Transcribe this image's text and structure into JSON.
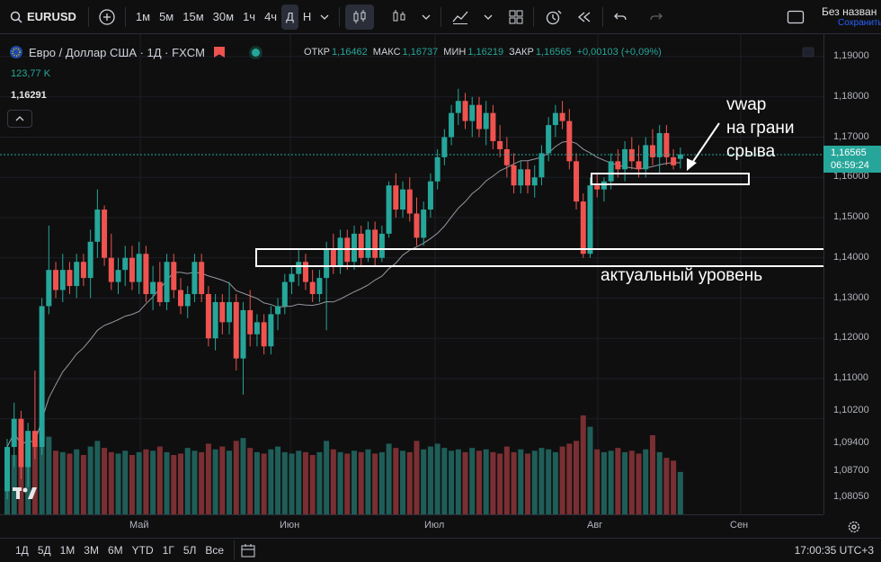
{
  "toolbar": {
    "symbol": "EURUSD",
    "intervals": [
      "1м",
      "5м",
      "15м",
      "30м",
      "1ч",
      "4ч",
      "Д",
      "Н"
    ],
    "active_interval": "Д",
    "save_title": "Без назван",
    "save_sub": "Сохранить"
  },
  "legend": {
    "title": "Евро / Доллар США · 1Д · FXCM",
    "open_label": "ОТКР",
    "open": "1,16462",
    "high_label": "МАКС",
    "high": "1,16737",
    "low_label": "МИН",
    "low": "1,16219",
    "close_label": "ЗАКР",
    "close": "1,16565",
    "change": "+0,00103 (+0,09%)",
    "volume": "123,77 K",
    "last": "1,16291"
  },
  "price_axis": {
    "ticks": [
      "1,19000",
      "1,18000",
      "1,17000",
      "1,16000",
      "1,15000",
      "1,14000",
      "1,13000",
      "1,12000",
      "1,11000",
      "1,10200",
      "1,09400",
      "1,08700",
      "1,08050"
    ],
    "current_price": "1,16565",
    "countdown": "06:59:24"
  },
  "time_axis": {
    "ticks": [
      "Май",
      "Июн",
      "Июл",
      "Авг",
      "Сен"
    ]
  },
  "bottom": {
    "ranges": [
      "1Д",
      "5Д",
      "1М",
      "3М",
      "6М",
      "YTD",
      "1Г",
      "5Л",
      "Все"
    ],
    "clock": "17:00:35 UTC+3"
  },
  "annotations": {
    "vwap_line1": "vwap",
    "vwap_line2": "на грани",
    "vwap_line3": "срыва",
    "level": "актуальный уровень"
  },
  "colors": {
    "up": "#26a69a",
    "down": "#ef5350",
    "background": "#0f0f0f"
  },
  "chart_data": {
    "type": "candlestick",
    "title": "Евро / Доллар США · 1Д · FXCM",
    "ylim": [
      1.0785,
      1.192
    ],
    "x_ticks": [
      "Май",
      "Июн",
      "Июл",
      "Авг",
      "Сен"
    ],
    "candles": [
      [
        1.082,
        1.095,
        1.08,
        1.093
      ],
      [
        1.093,
        1.104,
        1.088,
        1.1
      ],
      [
        1.1,
        1.102,
        1.085,
        1.088
      ],
      [
        1.088,
        1.099,
        1.083,
        1.097
      ],
      [
        1.097,
        1.112,
        1.09,
        1.093
      ],
      [
        1.093,
        1.13,
        1.091,
        1.128
      ],
      [
        1.128,
        1.148,
        1.126,
        1.137
      ],
      [
        1.137,
        1.139,
        1.13,
        1.132
      ],
      [
        1.132,
        1.141,
        1.129,
        1.137
      ],
      [
        1.137,
        1.139,
        1.131,
        1.133
      ],
      [
        1.133,
        1.141,
        1.13,
        1.139
      ],
      [
        1.139,
        1.141,
        1.133,
        1.135
      ],
      [
        1.135,
        1.147,
        1.13,
        1.144
      ],
      [
        1.144,
        1.157,
        1.14,
        1.152
      ],
      [
        1.152,
        1.153,
        1.138,
        1.14
      ],
      [
        1.14,
        1.146,
        1.132,
        1.134
      ],
      [
        1.134,
        1.14,
        1.131,
        1.137
      ],
      [
        1.137,
        1.143,
        1.133,
        1.14
      ],
      [
        1.14,
        1.143,
        1.132,
        1.134
      ],
      [
        1.134,
        1.144,
        1.131,
        1.141
      ],
      [
        1.141,
        1.143,
        1.129,
        1.131
      ],
      [
        1.131,
        1.138,
        1.127,
        1.134
      ],
      [
        1.134,
        1.139,
        1.128,
        1.129
      ],
      [
        1.129,
        1.141,
        1.127,
        1.139
      ],
      [
        1.139,
        1.141,
        1.13,
        1.132
      ],
      [
        1.132,
        1.135,
        1.126,
        1.128
      ],
      [
        1.128,
        1.133,
        1.125,
        1.131
      ],
      [
        1.131,
        1.141,
        1.129,
        1.139
      ],
      [
        1.139,
        1.141,
        1.129,
        1.131
      ],
      [
        1.131,
        1.133,
        1.118,
        1.12
      ],
      [
        1.12,
        1.131,
        1.117,
        1.129
      ],
      [
        1.129,
        1.131,
        1.121,
        1.124
      ],
      [
        1.124,
        1.134,
        1.121,
        1.129
      ],
      [
        1.129,
        1.131,
        1.112,
        1.115
      ],
      [
        1.115,
        1.129,
        1.106,
        1.127
      ],
      [
        1.127,
        1.132,
        1.118,
        1.121
      ],
      [
        1.121,
        1.126,
        1.118,
        1.124
      ],
      [
        1.124,
        1.126,
        1.116,
        1.118
      ],
      [
        1.118,
        1.128,
        1.116,
        1.126
      ],
      [
        1.126,
        1.13,
        1.122,
        1.128
      ],
      [
        1.128,
        1.136,
        1.126,
        1.134
      ],
      [
        1.134,
        1.138,
        1.131,
        1.136
      ],
      [
        1.136,
        1.142,
        1.133,
        1.139
      ],
      [
        1.139,
        1.141,
        1.132,
        1.134
      ],
      [
        1.134,
        1.137,
        1.129,
        1.131
      ],
      [
        1.131,
        1.137,
        1.129,
        1.135
      ],
      [
        1.135,
        1.144,
        1.122,
        1.142
      ],
      [
        1.142,
        1.146,
        1.136,
        1.138
      ],
      [
        1.138,
        1.147,
        1.136,
        1.145
      ],
      [
        1.145,
        1.147,
        1.137,
        1.139
      ],
      [
        1.139,
        1.148,
        1.137,
        1.146
      ],
      [
        1.146,
        1.148,
        1.138,
        1.14
      ],
      [
        1.14,
        1.149,
        1.139,
        1.147
      ],
      [
        1.147,
        1.149,
        1.138,
        1.14
      ],
      [
        1.14,
        1.148,
        1.139,
        1.146
      ],
      [
        1.146,
        1.159,
        1.145,
        1.158
      ],
      [
        1.158,
        1.161,
        1.15,
        1.152
      ],
      [
        1.152,
        1.159,
        1.15,
        1.157
      ],
      [
        1.157,
        1.16,
        1.149,
        1.151
      ],
      [
        1.151,
        1.155,
        1.143,
        1.145
      ],
      [
        1.145,
        1.154,
        1.143,
        1.152
      ],
      [
        1.152,
        1.161,
        1.15,
        1.159
      ],
      [
        1.159,
        1.167,
        1.157,
        1.165
      ],
      [
        1.165,
        1.172,
        1.163,
        1.17
      ],
      [
        1.17,
        1.178,
        1.168,
        1.176
      ],
      [
        1.176,
        1.182,
        1.173,
        1.179
      ],
      [
        1.179,
        1.181,
        1.172,
        1.174
      ],
      [
        1.174,
        1.18,
        1.17,
        1.178
      ],
      [
        1.178,
        1.18,
        1.17,
        1.172
      ],
      [
        1.172,
        1.179,
        1.168,
        1.176
      ],
      [
        1.176,
        1.178,
        1.167,
        1.169
      ],
      [
        1.169,
        1.173,
        1.165,
        1.167
      ],
      [
        1.167,
        1.17,
        1.16,
        1.163
      ],
      [
        1.163,
        1.166,
        1.156,
        1.158
      ],
      [
        1.158,
        1.164,
        1.156,
        1.162
      ],
      [
        1.162,
        1.164,
        1.156,
        1.158
      ],
      [
        1.158,
        1.163,
        1.155,
        1.16
      ],
      [
        1.16,
        1.168,
        1.158,
        1.166
      ],
      [
        1.166,
        1.175,
        1.164,
        1.173
      ],
      [
        1.173,
        1.178,
        1.17,
        1.176
      ],
      [
        1.176,
        1.179,
        1.172,
        1.174
      ],
      [
        1.174,
        1.177,
        1.162,
        1.164
      ],
      [
        1.164,
        1.166,
        1.152,
        1.154
      ],
      [
        1.154,
        1.156,
        1.14,
        1.141
      ],
      [
        1.141,
        1.16,
        1.14,
        1.158
      ],
      [
        1.158,
        1.161,
        1.155,
        1.157
      ],
      [
        1.157,
        1.16,
        1.154,
        1.159
      ],
      [
        1.159,
        1.166,
        1.157,
        1.164
      ],
      [
        1.164,
        1.167,
        1.16,
        1.162
      ],
      [
        1.162,
        1.169,
        1.159,
        1.167
      ],
      [
        1.167,
        1.17,
        1.162,
        1.164
      ],
      [
        1.164,
        1.168,
        1.16,
        1.162
      ],
      [
        1.162,
        1.17,
        1.16,
        1.168
      ],
      [
        1.168,
        1.172,
        1.163,
        1.165
      ],
      [
        1.165,
        1.173,
        1.161,
        1.171
      ],
      [
        1.171,
        1.173,
        1.163,
        1.165
      ],
      [
        1.165,
        1.167,
        1.162,
        1.163
      ],
      [
        1.1646,
        1.1674,
        1.1622,
        1.1657
      ]
    ],
    "volumes": [
      40,
      42,
      58,
      50,
      48,
      62,
      55,
      45,
      44,
      43,
      46,
      42,
      48,
      52,
      47,
      44,
      43,
      45,
      42,
      44,
      46,
      45,
      48,
      44,
      42,
      43,
      47,
      45,
      44,
      50,
      46,
      48,
      45,
      52,
      54,
      47,
      44,
      43,
      46,
      48,
      44,
      43,
      45,
      44,
      42,
      44,
      52,
      46,
      44,
      43,
      45,
      44,
      46,
      43,
      44,
      50,
      47,
      45,
      44,
      52,
      46,
      48,
      50,
      47,
      45,
      46,
      44,
      47,
      45,
      46,
      44,
      43,
      48,
      44,
      46,
      43,
      45,
      47,
      46,
      44,
      48,
      50,
      52,
      70,
      62,
      46,
      44,
      45,
      47,
      44,
      45,
      43,
      46,
      56,
      44,
      40,
      38,
      30
    ]
  }
}
